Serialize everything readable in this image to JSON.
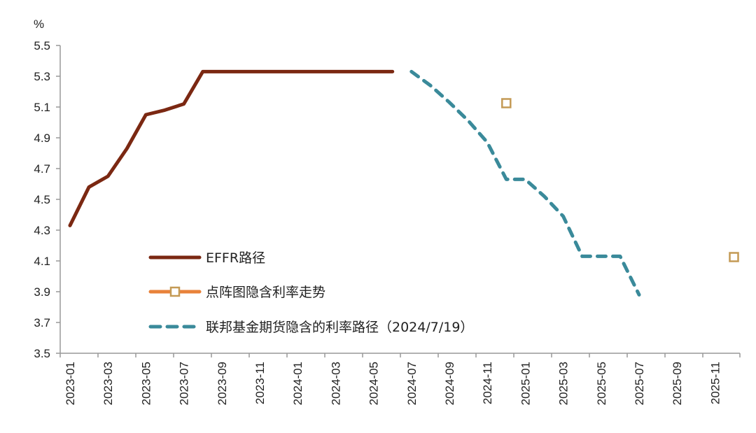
{
  "chart_data": {
    "type": "line",
    "title": "",
    "ylabel": "%",
    "xlabel": "",
    "ylim": [
      3.5,
      5.5
    ],
    "yticks": [
      "3.5",
      "3.7",
      "3.9",
      "4.1",
      "4.3",
      "4.5",
      "4.7",
      "4.9",
      "5.1",
      "5.3",
      "5.5"
    ],
    "xlim": [
      "2022-12",
      "2026-01"
    ],
    "xticks": [
      "2023-01",
      "2023-03",
      "2023-05",
      "2023-07",
      "2023-09",
      "2023-11",
      "2024-01",
      "2024-03",
      "2024-05",
      "2024-07",
      "2024-09",
      "2024-11",
      "2025-01",
      "2025-03",
      "2025-05",
      "2025-07",
      "2025-09",
      "2025-11"
    ],
    "grid": false,
    "legend_position": "center-left",
    "series": [
      {
        "name": "EFFR路径",
        "style": "solid",
        "color": "#7B2812",
        "x": [
          "2023-01",
          "2023-02",
          "2023-03",
          "2023-04",
          "2023-05",
          "2023-06",
          "2023-07",
          "2023-08",
          "2024-06"
        ],
        "y": [
          4.33,
          4.58,
          4.65,
          4.83,
          5.05,
          5.08,
          5.12,
          5.33,
          5.33
        ]
      },
      {
        "name": "点阵图隐含利率走势",
        "style": "markers",
        "color": "#E8823A",
        "marker_color": "#C49A55",
        "x": [
          "2024-12",
          "2025-12"
        ],
        "y": [
          5.125,
          4.125
        ]
      },
      {
        "name": "联邦基金期货隐含的利率路径（2024/7/19）",
        "style": "dashed",
        "color": "#3A8A9A",
        "x": [
          "2024-07",
          "2024-08",
          "2024-09",
          "2024-10",
          "2024-11",
          "2024-12",
          "2025-01",
          "2025-02",
          "2025-03",
          "2025-04",
          "2025-05",
          "2025-06",
          "2025-07"
        ],
        "y": [
          5.33,
          5.24,
          5.13,
          5.01,
          4.87,
          4.63,
          4.63,
          4.52,
          4.39,
          4.13,
          4.13,
          4.13,
          3.88
        ]
      }
    ]
  }
}
